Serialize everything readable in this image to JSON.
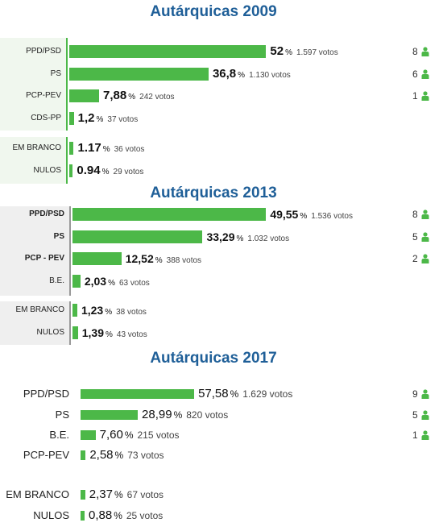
{
  "sections": [
    {
      "title": "Autárquicas 2009",
      "parties": [
        {
          "name": "PPD/PSD",
          "pct": "52",
          "votes": "1.597 votos",
          "value": 52,
          "seats": "8"
        },
        {
          "name": "PS",
          "pct": "36,8",
          "votes": "1.130 votos",
          "value": 36.8,
          "seats": "6"
        },
        {
          "name": "PCP-PEV",
          "pct": "7,88",
          "votes": "242 votos",
          "value": 7.88,
          "seats": "1"
        },
        {
          "name": "CDS-PP",
          "pct": "1,2",
          "votes": "37 votos",
          "value": 1.2,
          "seats": ""
        }
      ],
      "others": [
        {
          "name": "EM BRANCO",
          "pct": "1.17",
          "votes": "36 votos",
          "value": 1.17
        },
        {
          "name": "NULOS",
          "pct": "0.94",
          "votes": "29 votos",
          "value": 0.94
        }
      ]
    },
    {
      "title": "Autárquicas 2013",
      "parties": [
        {
          "name": "PPD/PSD",
          "pct": "49,55",
          "votes": "1.536 votos",
          "value": 49.55,
          "seats": "8"
        },
        {
          "name": "PS",
          "pct": "33,29",
          "votes": "1.032 votos",
          "value": 33.29,
          "seats": "5"
        },
        {
          "name": "PCP - PEV",
          "pct": "12,52",
          "votes": "388 votos",
          "value": 12.52,
          "seats": "2"
        },
        {
          "name": "B.E.",
          "pct": "2,03",
          "votes": "63 votos",
          "value": 2.03,
          "seats": ""
        }
      ],
      "others": [
        {
          "name": "EM BRANCO",
          "pct": "1,23",
          "votes": "38 votos",
          "value": 1.23
        },
        {
          "name": "NULOS",
          "pct": "1,39",
          "votes": "43 votos",
          "value": 1.39
        }
      ]
    },
    {
      "title": "Autárquicas 2017",
      "parties": [
        {
          "name": "PPD/PSD",
          "pct": "57,58",
          "votes": "1.629 votos",
          "value": 57.58,
          "seats": "9"
        },
        {
          "name": "PS",
          "pct": "28,99",
          "votes": "820 votos",
          "value": 28.99,
          "seats": "5"
        },
        {
          "name": "B.E.",
          "pct": "7,60",
          "votes": "215 votos",
          "value": 7.6,
          "seats": "1"
        },
        {
          "name": "PCP-PEV",
          "pct": "2,58",
          "votes": "73 votos",
          "value": 2.58,
          "seats": ""
        }
      ],
      "others": [
        {
          "name": "EM BRANCO",
          "pct": "2,37",
          "votes": "67 votos",
          "value": 2.37
        },
        {
          "name": "NULOS",
          "pct": "0,88",
          "votes": "25 votos",
          "value": 0.88
        }
      ]
    }
  ],
  "percent_sign": "%",
  "colors": {
    "bar": "#4cb848",
    "title": "#1f5f98",
    "seat_icon": "#4cb848"
  },
  "icons": {
    "seat": "person-icon"
  },
  "chart_data": [
    {
      "type": "bar",
      "title": "Autárquicas 2009",
      "categories": [
        "PPD/PSD",
        "PS",
        "PCP-PEV",
        "CDS-PP",
        "EM BRANCO",
        "NULOS"
      ],
      "values": [
        52,
        36.8,
        7.88,
        1.2,
        1.17,
        0.94
      ],
      "votes": [
        1597,
        1130,
        242,
        37,
        36,
        29
      ],
      "seats": [
        8,
        6,
        1,
        0
      ]
    },
    {
      "type": "bar",
      "title": "Autárquicas 2013",
      "categories": [
        "PPD/PSD",
        "PS",
        "PCP - PEV",
        "B.E.",
        "EM BRANCO",
        "NULOS"
      ],
      "values": [
        49.55,
        33.29,
        12.52,
        2.03,
        1.23,
        1.39
      ],
      "votes": [
        1536,
        1032,
        388,
        63,
        38,
        43
      ],
      "seats": [
        8,
        5,
        2,
        0
      ]
    },
    {
      "type": "bar",
      "title": "Autárquicas 2017",
      "categories": [
        "PPD/PSD",
        "PS",
        "B.E.",
        "PCP-PEV",
        "EM BRANCO",
        "NULOS"
      ],
      "values": [
        57.58,
        28.99,
        7.6,
        2.58,
        2.37,
        0.88
      ],
      "votes": [
        1629,
        820,
        215,
        73,
        67,
        25
      ],
      "seats": [
        9,
        5,
        1,
        0
      ]
    }
  ]
}
